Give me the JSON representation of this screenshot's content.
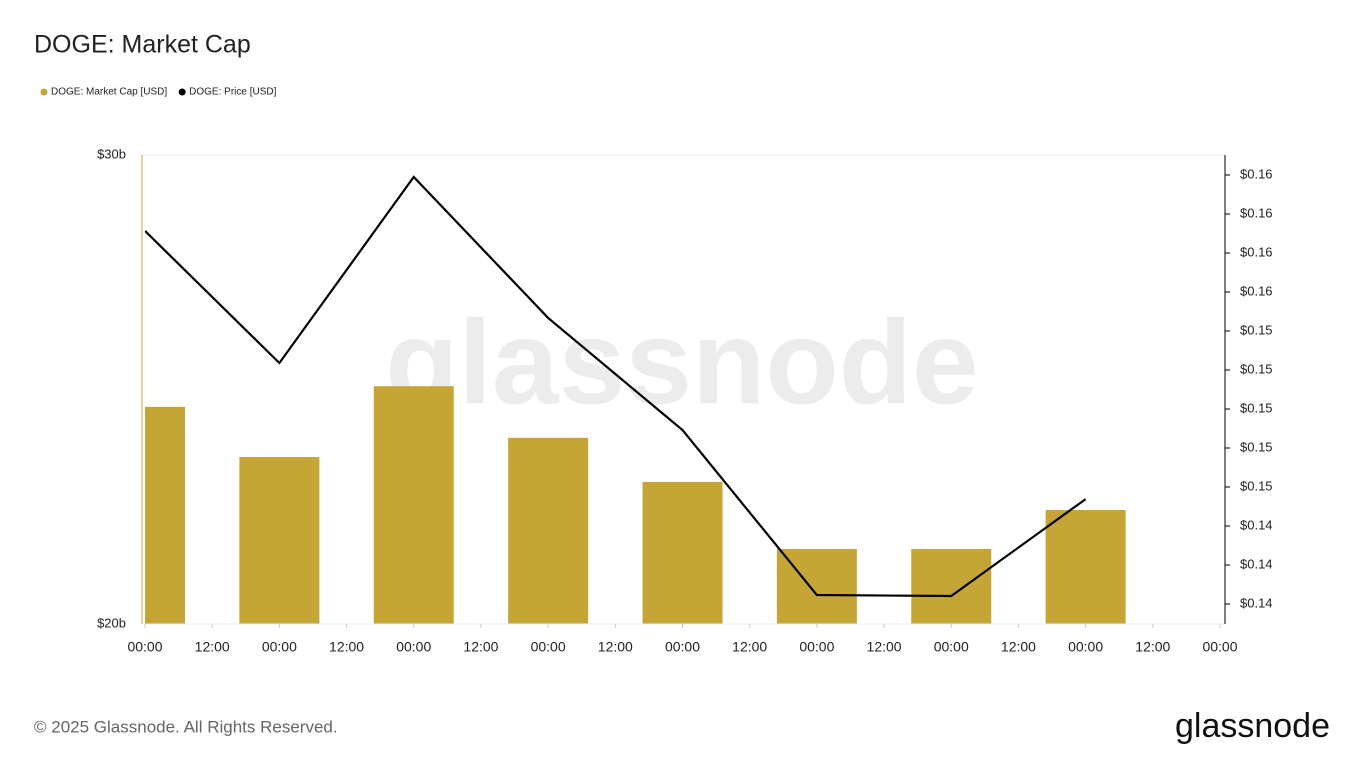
{
  "chart_data": {
    "type": "bar_line",
    "title": "DOGE: Market Cap",
    "watermark": "glassnode",
    "footer": "© 2025 Glassnode. All Rights Reserved.",
    "logo": "glassnode",
    "x": [
      0,
      24,
      48,
      72,
      96,
      120,
      144,
      168
    ],
    "xlim": [
      0,
      192
    ],
    "xticks": [
      {
        "value": 0,
        "label": "00:00"
      },
      {
        "value": 12,
        "label": "12:00"
      },
      {
        "value": 24,
        "label": "00:00"
      },
      {
        "value": 36,
        "label": "12:00"
      },
      {
        "value": 48,
        "label": "00:00"
      },
      {
        "value": 60,
        "label": "12:00"
      },
      {
        "value": 72,
        "label": "00:00"
      },
      {
        "value": 84,
        "label": "12:00"
      },
      {
        "value": 96,
        "label": "00:00"
      },
      {
        "value": 108,
        "label": "12:00"
      },
      {
        "value": 120,
        "label": "00:00"
      },
      {
        "value": 132,
        "label": "12:00"
      },
      {
        "value": 144,
        "label": "00:00"
      },
      {
        "value": 156,
        "label": "12:00"
      },
      {
        "value": 168,
        "label": "00:00"
      },
      {
        "value": 180,
        "label": "12:00"
      },
      {
        "value": 192,
        "label": "00:00"
      }
    ],
    "ylim": [
      20,
      30
    ],
    "yticks": [
      {
        "value": 20,
        "label": "$20b"
      },
      {
        "value": 30,
        "label": "$30b"
      }
    ],
    "y2lim": [
      0.138974,
      0.163026
    ],
    "y2ticks": [
      {
        "value": 0.14,
        "label": "$0.14"
      },
      {
        "value": 0.142,
        "label": "$0.14"
      },
      {
        "value": 0.144,
        "label": "$0.14"
      },
      {
        "value": 0.146,
        "label": "$0.15"
      },
      {
        "value": 0.148,
        "label": "$0.15"
      },
      {
        "value": 0.15,
        "label": "$0.15"
      },
      {
        "value": 0.152,
        "label": "$0.15"
      },
      {
        "value": 0.154,
        "label": "$0.15"
      },
      {
        "value": 0.156,
        "label": "$0.16"
      },
      {
        "value": 0.158,
        "label": "$0.16"
      },
      {
        "value": 0.16,
        "label": "$0.16"
      },
      {
        "value": 0.162,
        "label": "$0.16"
      }
    ],
    "series": [
      {
        "name": "DOGE: Market Cap [USD]",
        "type": "bar",
        "color": "#c4a535",
        "values": [
          24.63,
          23.56,
          25.07,
          23.97,
          23.03,
          21.6,
          21.6,
          22.43
        ]
      },
      {
        "name": "DOGE: Price [USD]",
        "type": "line",
        "color": "#000000",
        "axis": "y2",
        "values": [
          0.15913,
          0.15236,
          0.1619,
          0.15467,
          0.14892,
          0.14046,
          0.14041,
          0.14538
        ]
      }
    ]
  }
}
